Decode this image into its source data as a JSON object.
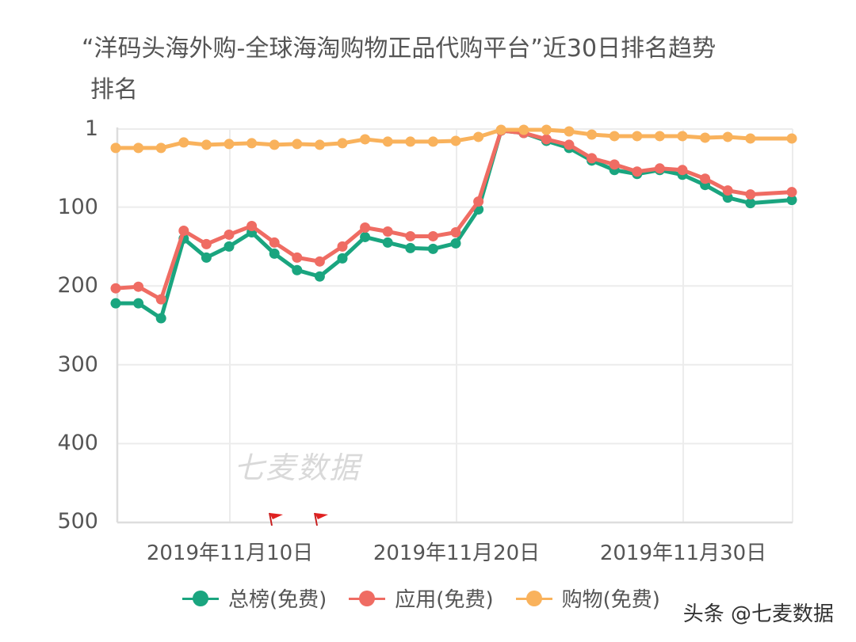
{
  "title": "“洋码头海外购-全球海淘购物正品代购平台”近30日排名趋势",
  "y_axis_title": "排名",
  "y_ticks": [
    "1",
    "100",
    "200",
    "300",
    "400",
    "500"
  ],
  "x_ticks": [
    "2019年11月10日",
    "2019年11月20日",
    "2019年11月30日"
  ],
  "watermark": "七麦数据",
  "credit": "头条 @七麦数据",
  "legend": [
    {
      "label": "总榜(免费)",
      "color": "#1aa57f"
    },
    {
      "label": "应用(免费)",
      "color": "#ef6c63"
    },
    {
      "label": "购物(免费)",
      "color": "#f9b25c"
    }
  ],
  "chart_data": {
    "type": "line",
    "title": "“洋码头海外购-全球海淘购物正品代购平台”近30日排名趋势",
    "xlabel": "",
    "ylabel": "排名",
    "ylim": [
      1,
      500
    ],
    "y_inverted": true,
    "grid": true,
    "legend_position": "bottom",
    "x": [
      "11-05",
      "11-06",
      "11-07",
      "11-08",
      "11-09",
      "11-10",
      "11-11",
      "11-12",
      "11-13",
      "11-14",
      "11-15",
      "11-16",
      "11-17",
      "11-18",
      "11-19",
      "11-20",
      "11-21",
      "11-22",
      "11-23",
      "11-24",
      "11-25",
      "11-26",
      "11-27",
      "11-28",
      "11-29",
      "11-30",
      "12-01",
      "12-02",
      "12-03",
      "12-05"
    ],
    "x_tick_labels": [
      "2019年11月10日",
      "2019年11月20日",
      "2019年11月30日"
    ],
    "y_tick_labels": [
      "1",
      "100",
      "200",
      "300",
      "400",
      "500"
    ],
    "series": [
      {
        "name": "总榜(免费)",
        "color": "#1aa57f",
        "values": [
          222,
          222,
          241,
          140,
          164,
          150,
          132,
          159,
          180,
          188,
          165,
          138,
          145,
          152,
          153,
          146,
          103,
          3,
          6,
          16,
          25,
          41,
          53,
          58,
          53,
          59,
          72,
          88,
          95,
          91
        ]
      },
      {
        "name": "应用(免费)",
        "color": "#ef6c63",
        "values": [
          203,
          201,
          217,
          130,
          147,
          135,
          124,
          145,
          164,
          169,
          150,
          126,
          131,
          137,
          137,
          132,
          93,
          3,
          6,
          14,
          21,
          38,
          46,
          55,
          51,
          53,
          64,
          79,
          84,
          81
        ]
      },
      {
        "name": "购物(免费)",
        "color": "#f9b25c",
        "values": [
          25,
          25,
          25,
          18,
          21,
          20,
          19,
          21,
          20,
          21,
          19,
          14,
          17,
          17,
          17,
          16,
          11,
          2,
          2,
          2,
          4,
          8,
          10,
          10,
          10,
          10,
          12,
          11,
          13,
          13
        ]
      }
    ],
    "annotations": [
      {
        "type": "flag",
        "color": "#e02020",
        "x": "11-12"
      },
      {
        "type": "flag",
        "color": "#e02020",
        "x": "11-14"
      }
    ]
  }
}
